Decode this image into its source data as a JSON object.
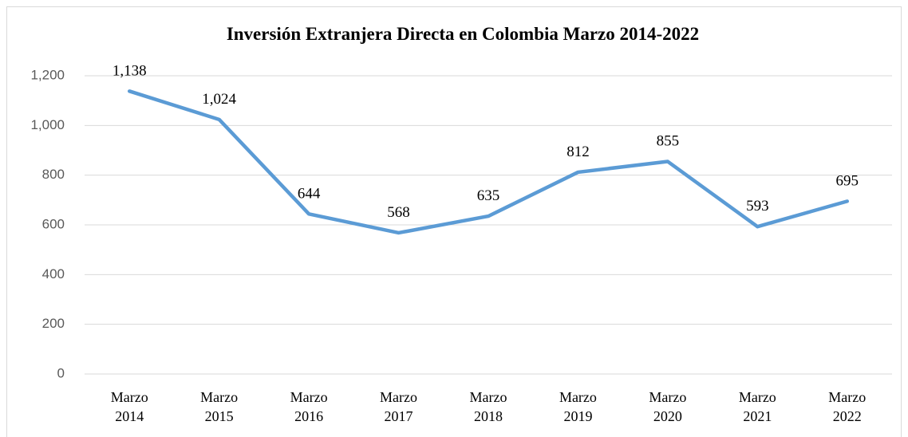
{
  "chart_data": {
    "type": "line",
    "title": "Inversión Extranjera Directa en Colombia Marzo 2014-2022",
    "categories": [
      "Marzo 2014",
      "Marzo 2015",
      "Marzo 2016",
      "Marzo 2017",
      "Marzo 2018",
      "Marzo 2019",
      "Marzo 2020",
      "Marzo 2021",
      "Marzo 2022"
    ],
    "series": [
      {
        "name": "Inversión Extranjera Directa",
        "color": "#5b9bd5",
        "values": [
          1138,
          1024,
          644,
          568,
          635,
          812,
          855,
          593,
          695
        ],
        "value_labels": [
          "1,138",
          "1,024",
          "644",
          "568",
          "635",
          "812",
          "855",
          "593",
          "695"
        ]
      }
    ],
    "ylim": [
      0,
      1200
    ],
    "yticks": [
      0,
      200,
      400,
      600,
      800,
      {
        "value": 1000,
        "label": "1,000"
      },
      {
        "value": 1200,
        "label": "1,200"
      }
    ],
    "grid": true,
    "legend": false
  }
}
